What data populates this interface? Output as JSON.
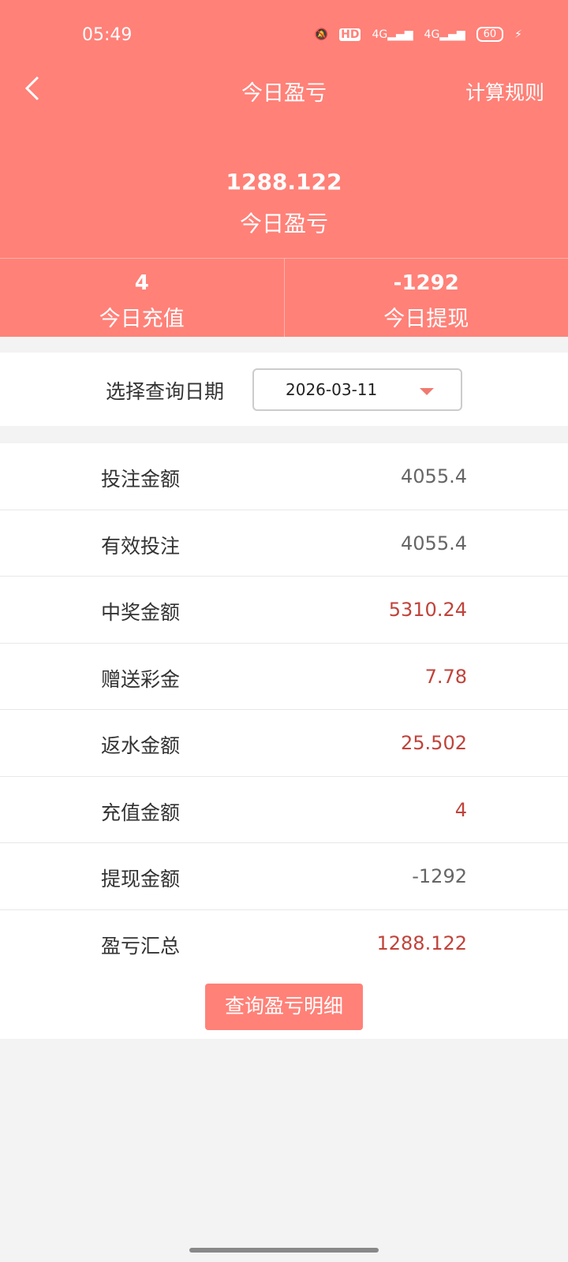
{
  "status_bar": {
    "time": "05:49",
    "network1": "4G",
    "network2": "4G",
    "battery": "60",
    "hd": "HD"
  },
  "header": {
    "title": "今日盈亏",
    "rules_label": "计算规则",
    "total_value": "1288.122",
    "total_label": "今日盈亏",
    "stats": [
      {
        "value": "4",
        "label": "今日充值"
      },
      {
        "value": "-1292",
        "label": "今日提现"
      }
    ]
  },
  "date_filter": {
    "label": "选择查询日期",
    "value": "2026-03-11"
  },
  "rows": [
    {
      "label": "投注金额",
      "value": "4055.4"
    },
    {
      "label": "有效投注",
      "value": "4055.4"
    },
    {
      "label": "中奖金额",
      "value": "5310.24"
    },
    {
      "label": "赠送彩金",
      "value": "7.78"
    },
    {
      "label": "返水金额",
      "value": "25.502"
    },
    {
      "label": "充值金额",
      "value": "4"
    },
    {
      "label": "提现金额",
      "value": "-1292"
    },
    {
      "label": "盈亏汇总",
      "value": "1288.122"
    }
  ],
  "detail_button": "查询盈亏明细",
  "colors": {
    "accent": "#ff8178",
    "positive_value": "#c0433a",
    "neutral_value": "#666666"
  }
}
